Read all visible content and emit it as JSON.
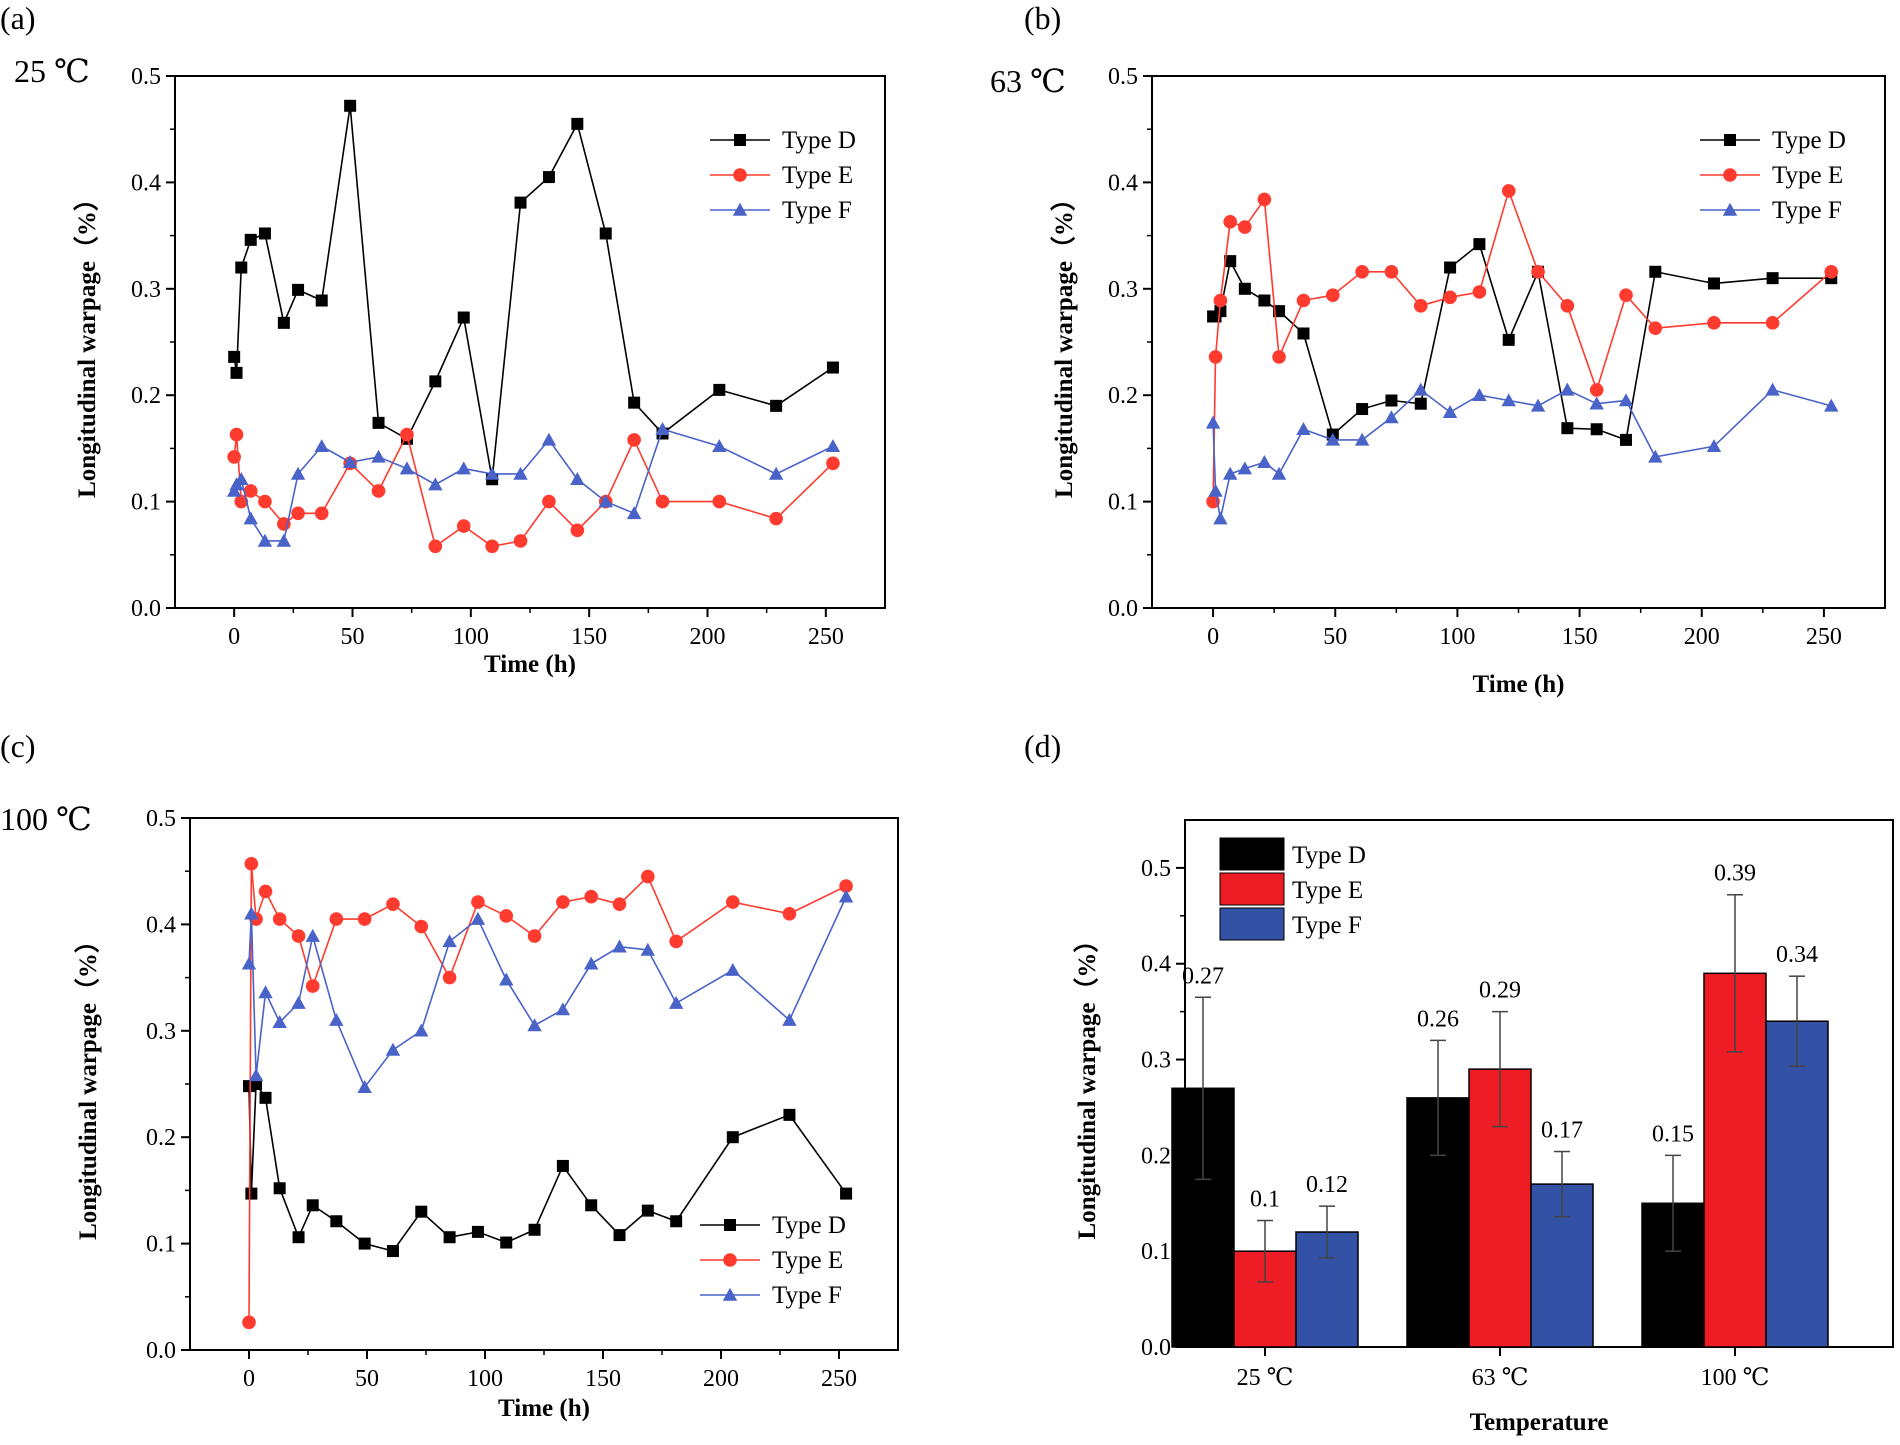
{
  "chart_data": [
    {
      "panel_label": "(a)",
      "temperature_label": "25 ℃",
      "type": "line",
      "xlabel": "Time (h)",
      "ylabel": "Longitudinal warpage（%）",
      "xlim": [
        -25,
        275
      ],
      "ylim": [
        0,
        0.5
      ],
      "xticks": [
        "0",
        "50",
        "100",
        "150",
        "200",
        "250"
      ],
      "yticks": [
        "0.0",
        "0.1",
        "0.2",
        "0.3",
        "0.4",
        "0.5"
      ],
      "legend_position": "top-right",
      "series": [
        {
          "name": "Type D",
          "color": "#000000",
          "marker": "square",
          "x": [
            0,
            1,
            3,
            7,
            13,
            21,
            27,
            37,
            49,
            61,
            73,
            85,
            97,
            109,
            121,
            133,
            145,
            157,
            169,
            181,
            205,
            229,
            253
          ],
          "y": [
            0.236,
            0.221,
            0.32,
            0.346,
            0.352,
            0.268,
            0.299,
            0.289,
            0.472,
            0.174,
            0.159,
            0.213,
            0.273,
            0.121,
            0.381,
            0.405,
            0.455,
            0.352,
            0.193,
            0.164,
            0.205,
            0.19,
            0.226
          ]
        },
        {
          "name": "Type E",
          "color": "#ff3b2f",
          "marker": "circle",
          "x": [
            0,
            1,
            3,
            7,
            13,
            21,
            27,
            37,
            49,
            61,
            73,
            85,
            97,
            109,
            121,
            133,
            145,
            157,
            169,
            181,
            205,
            229,
            253
          ],
          "y": [
            0.142,
            0.163,
            0.1,
            0.11,
            0.1,
            0.079,
            0.089,
            0.089,
            0.136,
            0.11,
            0.163,
            0.058,
            0.077,
            0.058,
            0.063,
            0.1,
            0.073,
            0.1,
            0.158,
            0.1,
            0.1,
            0.084,
            0.136
          ]
        },
        {
          "name": "Type F",
          "color": "#4a63c8",
          "marker": "triangle",
          "x": [
            0,
            1,
            3,
            7,
            13,
            21,
            27,
            37,
            49,
            61,
            73,
            85,
            97,
            109,
            121,
            133,
            145,
            157,
            169,
            181,
            205,
            229,
            253
          ],
          "y": [
            0.11,
            0.116,
            0.121,
            0.084,
            0.063,
            0.063,
            0.126,
            0.152,
            0.137,
            0.142,
            0.131,
            0.116,
            0.131,
            0.126,
            0.126,
            0.158,
            0.121,
            0.1,
            0.089,
            0.168,
            0.152,
            0.126,
            0.152
          ]
        }
      ]
    },
    {
      "panel_label": "(b)",
      "temperature_label": "63 ℃",
      "type": "line",
      "xlabel": "Time (h)",
      "ylabel": "Longitudinal warpage（%）",
      "xlim": [
        -25,
        275
      ],
      "ylim": [
        0,
        0.5
      ],
      "xticks": [
        "0",
        "50",
        "100",
        "150",
        "200",
        "250"
      ],
      "yticks": [
        "0.0",
        "0.1",
        "0.2",
        "0.3",
        "0.4",
        "0.5"
      ],
      "legend_position": "top-right",
      "series": [
        {
          "name": "Type D",
          "color": "#000000",
          "marker": "square",
          "x": [
            0,
            1,
            3,
            7,
            13,
            21,
            27,
            37,
            49,
            61,
            73,
            85,
            97,
            109,
            121,
            133,
            145,
            157,
            169,
            181,
            205,
            229,
            253
          ],
          "y": [
            0.274,
            0.274,
            0.279,
            0.326,
            0.3,
            0.289,
            0.279,
            0.258,
            0.163,
            0.187,
            0.195,
            0.192,
            0.32,
            0.342,
            0.252,
            0.316,
            0.169,
            0.168,
            0.158,
            0.316,
            0.305,
            0.31,
            0.31
          ]
        },
        {
          "name": "Type E",
          "color": "#ff3b2f",
          "marker": "circle",
          "x": [
            0,
            1,
            3,
            7,
            13,
            21,
            27,
            37,
            49,
            61,
            73,
            85,
            97,
            109,
            121,
            133,
            145,
            157,
            169,
            181,
            205,
            229,
            253
          ],
          "y": [
            0.1,
            0.236,
            0.289,
            0.363,
            0.358,
            0.384,
            0.236,
            0.289,
            0.294,
            0.316,
            0.316,
            0.284,
            0.292,
            0.297,
            0.392,
            0.316,
            0.284,
            0.205,
            0.294,
            0.263,
            0.268,
            0.268,
            0.316
          ]
        },
        {
          "name": "Type F",
          "color": "#4a63c8",
          "marker": "triangle",
          "x": [
            0,
            1,
            3,
            7,
            13,
            21,
            27,
            37,
            49,
            61,
            73,
            85,
            97,
            109,
            121,
            133,
            145,
            157,
            169,
            181,
            205,
            229,
            253
          ],
          "y": [
            0.174,
            0.11,
            0.084,
            0.126,
            0.131,
            0.137,
            0.126,
            0.168,
            0.158,
            0.158,
            0.179,
            0.205,
            0.184,
            0.2,
            0.195,
            0.19,
            0.205,
            0.192,
            0.195,
            0.142,
            0.152,
            0.205,
            0.19
          ]
        }
      ]
    },
    {
      "panel_label": "(c)",
      "temperature_label": "100 ℃",
      "type": "line",
      "xlabel": "Time (h)",
      "ylabel": "Longitudinal warpage（%）",
      "xlim": [
        -25,
        275
      ],
      "ylim": [
        0,
        0.5
      ],
      "xticks": [
        "0",
        "50",
        "100",
        "150",
        "200",
        "250"
      ],
      "yticks": [
        "0.0",
        "0.1",
        "0.2",
        "0.3",
        "0.4",
        "0.5"
      ],
      "legend_position": "bottom-right",
      "series": [
        {
          "name": "Type D",
          "color": "#000000",
          "marker": "square",
          "x": [
            0,
            1,
            3,
            7,
            13,
            21,
            27,
            37,
            49,
            61,
            73,
            85,
            97,
            109,
            121,
            133,
            145,
            157,
            169,
            181,
            205,
            229,
            253
          ],
          "y": [
            0.248,
            0.147,
            0.25,
            0.237,
            0.152,
            0.106,
            0.136,
            0.121,
            0.1,
            0.093,
            0.13,
            0.106,
            0.111,
            0.101,
            0.113,
            0.173,
            0.136,
            0.108,
            0.131,
            0.121,
            0.2,
            0.221,
            0.147
          ]
        },
        {
          "name": "Type E",
          "color": "#ff3b2f",
          "marker": "circle",
          "x": [
            0,
            1,
            3,
            7,
            13,
            21,
            27,
            37,
            49,
            61,
            73,
            85,
            97,
            109,
            121,
            133,
            145,
            157,
            169,
            181,
            205,
            229,
            253
          ],
          "y": [
            0.026,
            0.457,
            0.405,
            0.431,
            0.405,
            0.389,
            0.342,
            0.405,
            0.405,
            0.419,
            0.398,
            0.35,
            0.421,
            0.408,
            0.389,
            0.421,
            0.426,
            0.419,
            0.445,
            0.384,
            0.421,
            0.41,
            0.436
          ]
        },
        {
          "name": "Type F",
          "color": "#4a63c8",
          "marker": "triangle",
          "x": [
            0,
            1,
            3,
            7,
            13,
            21,
            27,
            37,
            49,
            61,
            73,
            85,
            97,
            109,
            121,
            133,
            145,
            157,
            169,
            181,
            205,
            229,
            253
          ],
          "y": [
            0.363,
            0.41,
            0.258,
            0.336,
            0.308,
            0.326,
            0.389,
            0.31,
            0.247,
            0.282,
            0.3,
            0.384,
            0.405,
            0.348,
            0.305,
            0.32,
            0.363,
            0.379,
            0.376,
            0.326,
            0.357,
            0.31,
            0.426
          ]
        }
      ]
    },
    {
      "panel_label": "(d)",
      "type": "bar",
      "xlabel": "Temperature",
      "ylabel": "Longitudinal warpage（%）",
      "ylim": [
        0,
        0.55
      ],
      "yticks": [
        "0.0",
        "0.1",
        "0.2",
        "0.3",
        "0.4",
        "0.5"
      ],
      "categories": [
        "25 ℃",
        "63 ℃",
        "100 ℃"
      ],
      "legend_position": "top-left",
      "series": [
        {
          "name": "Type D",
          "color": "#000000",
          "values": [
            0.27,
            0.26,
            0.15
          ],
          "errors": [
            0.095,
            0.06,
            0.05
          ],
          "labels": [
            "0.27",
            "0.26",
            "0.15"
          ]
        },
        {
          "name": "Type E",
          "color": "#ee1c25",
          "values": [
            0.1,
            0.29,
            0.39
          ],
          "errors": [
            0.032,
            0.06,
            0.082
          ],
          "labels": [
            "0.1",
            "0.29",
            "0.39"
          ]
        },
        {
          "name": "Type F",
          "color": "#3352a5",
          "values": [
            0.12,
            0.17,
            0.34
          ],
          "errors": [
            0.027,
            0.034,
            0.047
          ],
          "labels": [
            "0.12",
            "0.17",
            "0.34"
          ]
        }
      ]
    }
  ]
}
